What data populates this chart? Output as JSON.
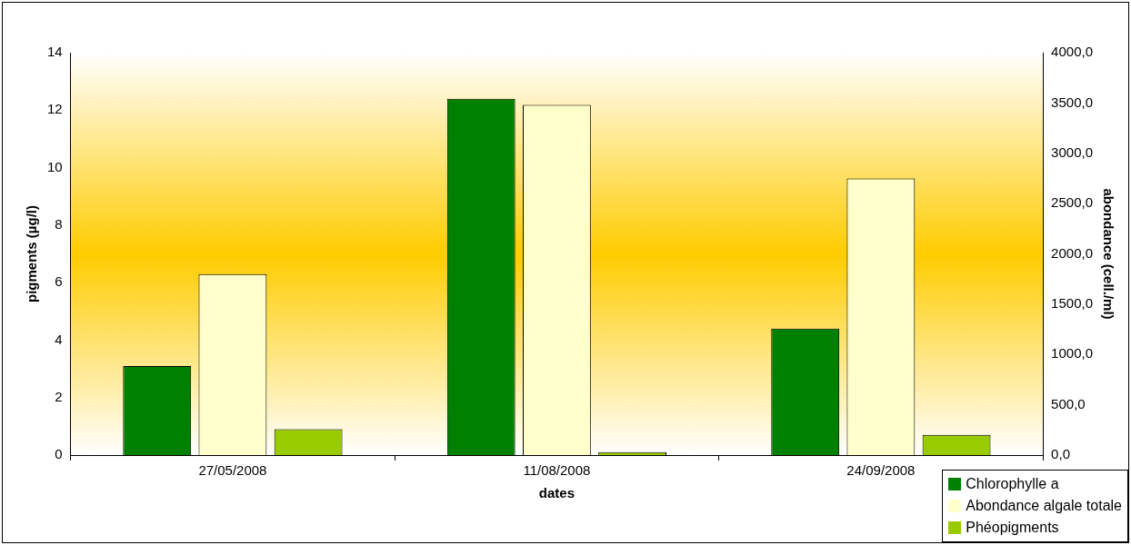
{
  "chart_data": {
    "type": "bar",
    "xlabel": "dates",
    "ylabel": "pigments (µg/l)",
    "y2label": "abondance (cell./ml)",
    "categories": [
      "27/05/2008",
      "11/08/2008",
      "24/09/2008"
    ],
    "series": [
      {
        "name": "Chlorophylle a",
        "color": "#008000",
        "values": [
          3.1,
          12.4,
          4.4
        ]
      },
      {
        "name": "Abondance algale totale",
        "color": "#ffffcc",
        "values": [
          1800,
          3480,
          2750
        ],
        "axis": "y2"
      },
      {
        "name": "Phéopigments",
        "color": "#99cc00",
        "values": [
          0.9,
          0.1,
          0.7
        ]
      }
    ],
    "ylim": [
      0,
      14
    ],
    "yticks": [
      0,
      2,
      4,
      6,
      8,
      10,
      12,
      14
    ],
    "y2lim": [
      0,
      4000
    ],
    "y2ticks": [
      {
        "value": 0,
        "label": "0,0"
      },
      {
        "value": 500,
        "label": "500,0"
      },
      {
        "value": 1000,
        "label": "1000,0"
      },
      {
        "value": 1500,
        "label": "1500,0"
      },
      {
        "value": 2000,
        "label": "2000,0"
      },
      {
        "value": 2500,
        "label": "2500,0"
      },
      {
        "value": 3000,
        "label": "3000,0"
      },
      {
        "value": 3500,
        "label": "3500,0"
      },
      {
        "value": 4000,
        "label": "4000,0"
      }
    ],
    "grid": false,
    "legend": "bottom right"
  }
}
